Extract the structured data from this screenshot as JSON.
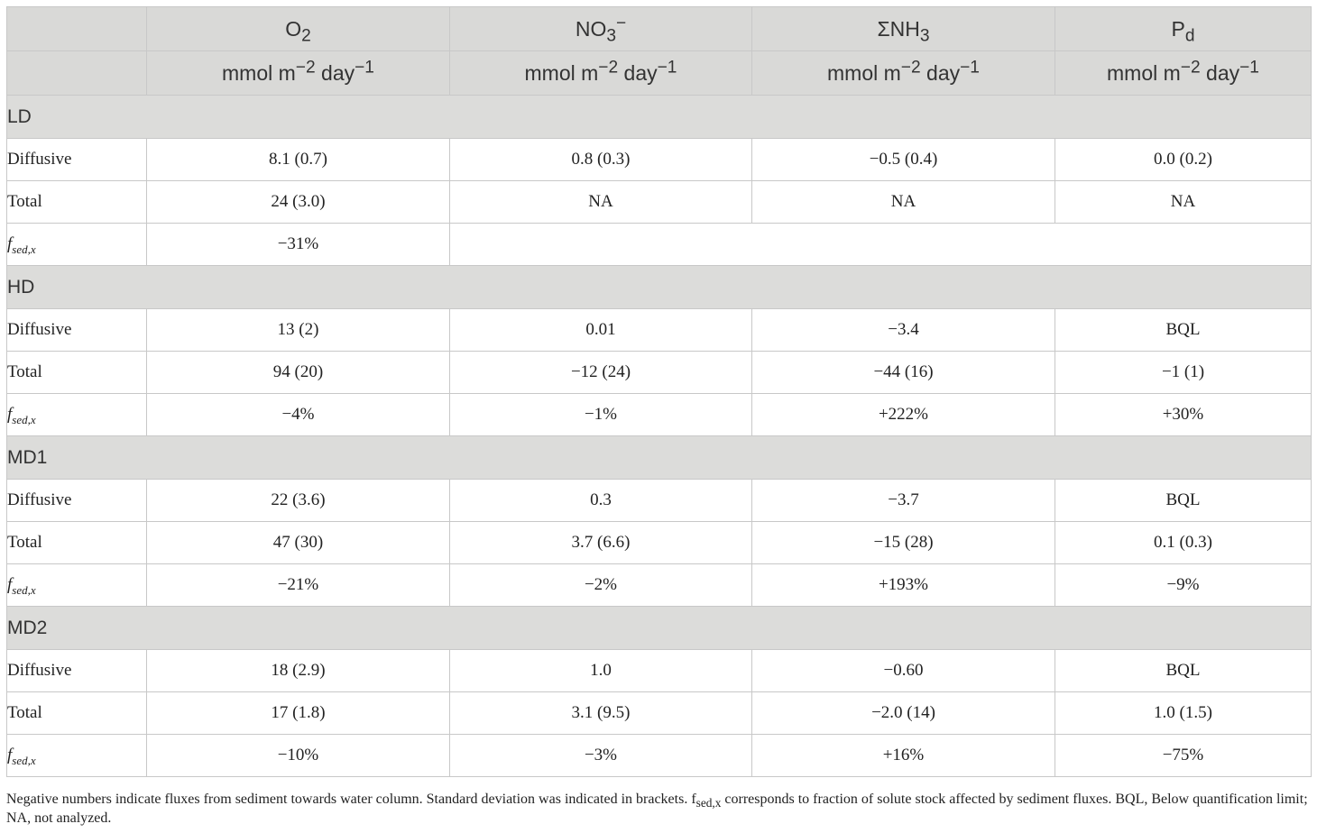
{
  "columns": [
    {
      "base": "O",
      "sub": "2",
      "sup": "",
      "unit": "mmol m",
      "unit_sup1": "−2",
      "unit_mid": " day",
      "unit_sup2": "−1"
    },
    {
      "base": "NO",
      "sub": "3",
      "sup": "−",
      "unit": "mmol m",
      "unit_sup1": "−2",
      "unit_mid": " day",
      "unit_sup2": "−1"
    },
    {
      "base": "ΣNH",
      "sub": "3",
      "sup": "",
      "unit": "mmol m",
      "unit_sup1": "−2",
      "unit_mid": " day",
      "unit_sup2": "−1"
    },
    {
      "base": "P",
      "sub": "d",
      "sup": "",
      "unit": "mmol m",
      "unit_sup1": "−2",
      "unit_mid": " day",
      "unit_sup2": "−1"
    }
  ],
  "row_labels": {
    "diffusive": "Diffusive",
    "total": "Total",
    "fsed_base": "f",
    "fsed_sub": "sed,x"
  },
  "groups": [
    {
      "name": "LD",
      "diffusive": [
        "8.1 (0.7)",
        "0.8 (0.3)",
        "−0.5 (0.4)",
        "0.0 (0.2)"
      ],
      "total": [
        "24 (3.0)",
        "NA",
        "NA",
        "NA"
      ],
      "fsed": [
        "−31%",
        "",
        "",
        ""
      ]
    },
    {
      "name": "HD",
      "diffusive": [
        "13 (2)",
        "0.01",
        "−3.4",
        "BQL"
      ],
      "total": [
        "94 (20)",
        "−12 (24)",
        "−44 (16)",
        "−1 (1)"
      ],
      "fsed": [
        "−4%",
        "−1%",
        "+222%",
        "+30%"
      ]
    },
    {
      "name": "MD1",
      "diffusive": [
        "22 (3.6)",
        "0.3",
        "−3.7",
        "BQL"
      ],
      "total": [
        "47 (30)",
        "3.7 (6.6)",
        "−15 (28)",
        "0.1 (0.3)"
      ],
      "fsed": [
        "−21%",
        "−2%",
        "+193%",
        "−9%"
      ]
    },
    {
      "name": "MD2",
      "diffusive": [
        "18 (2.9)",
        "1.0",
        "−0.60",
        "BQL"
      ],
      "total": [
        "17 (1.8)",
        "3.1 (9.5)",
        "−2.0 (14)",
        "1.0 (1.5)"
      ],
      "fsed": [
        "−10%",
        "−3%",
        "+16%",
        "−75%"
      ]
    }
  ],
  "footnote": {
    "part1": "Negative numbers indicate fluxes from sediment towards water column. Standard deviation was indicated in brackets. f",
    "part1_sub": "sed,x",
    "part2": " corresponds to fraction of solute stock affected by sediment fluxes. BQL, Below quantification limit; NA, not analyzed."
  }
}
